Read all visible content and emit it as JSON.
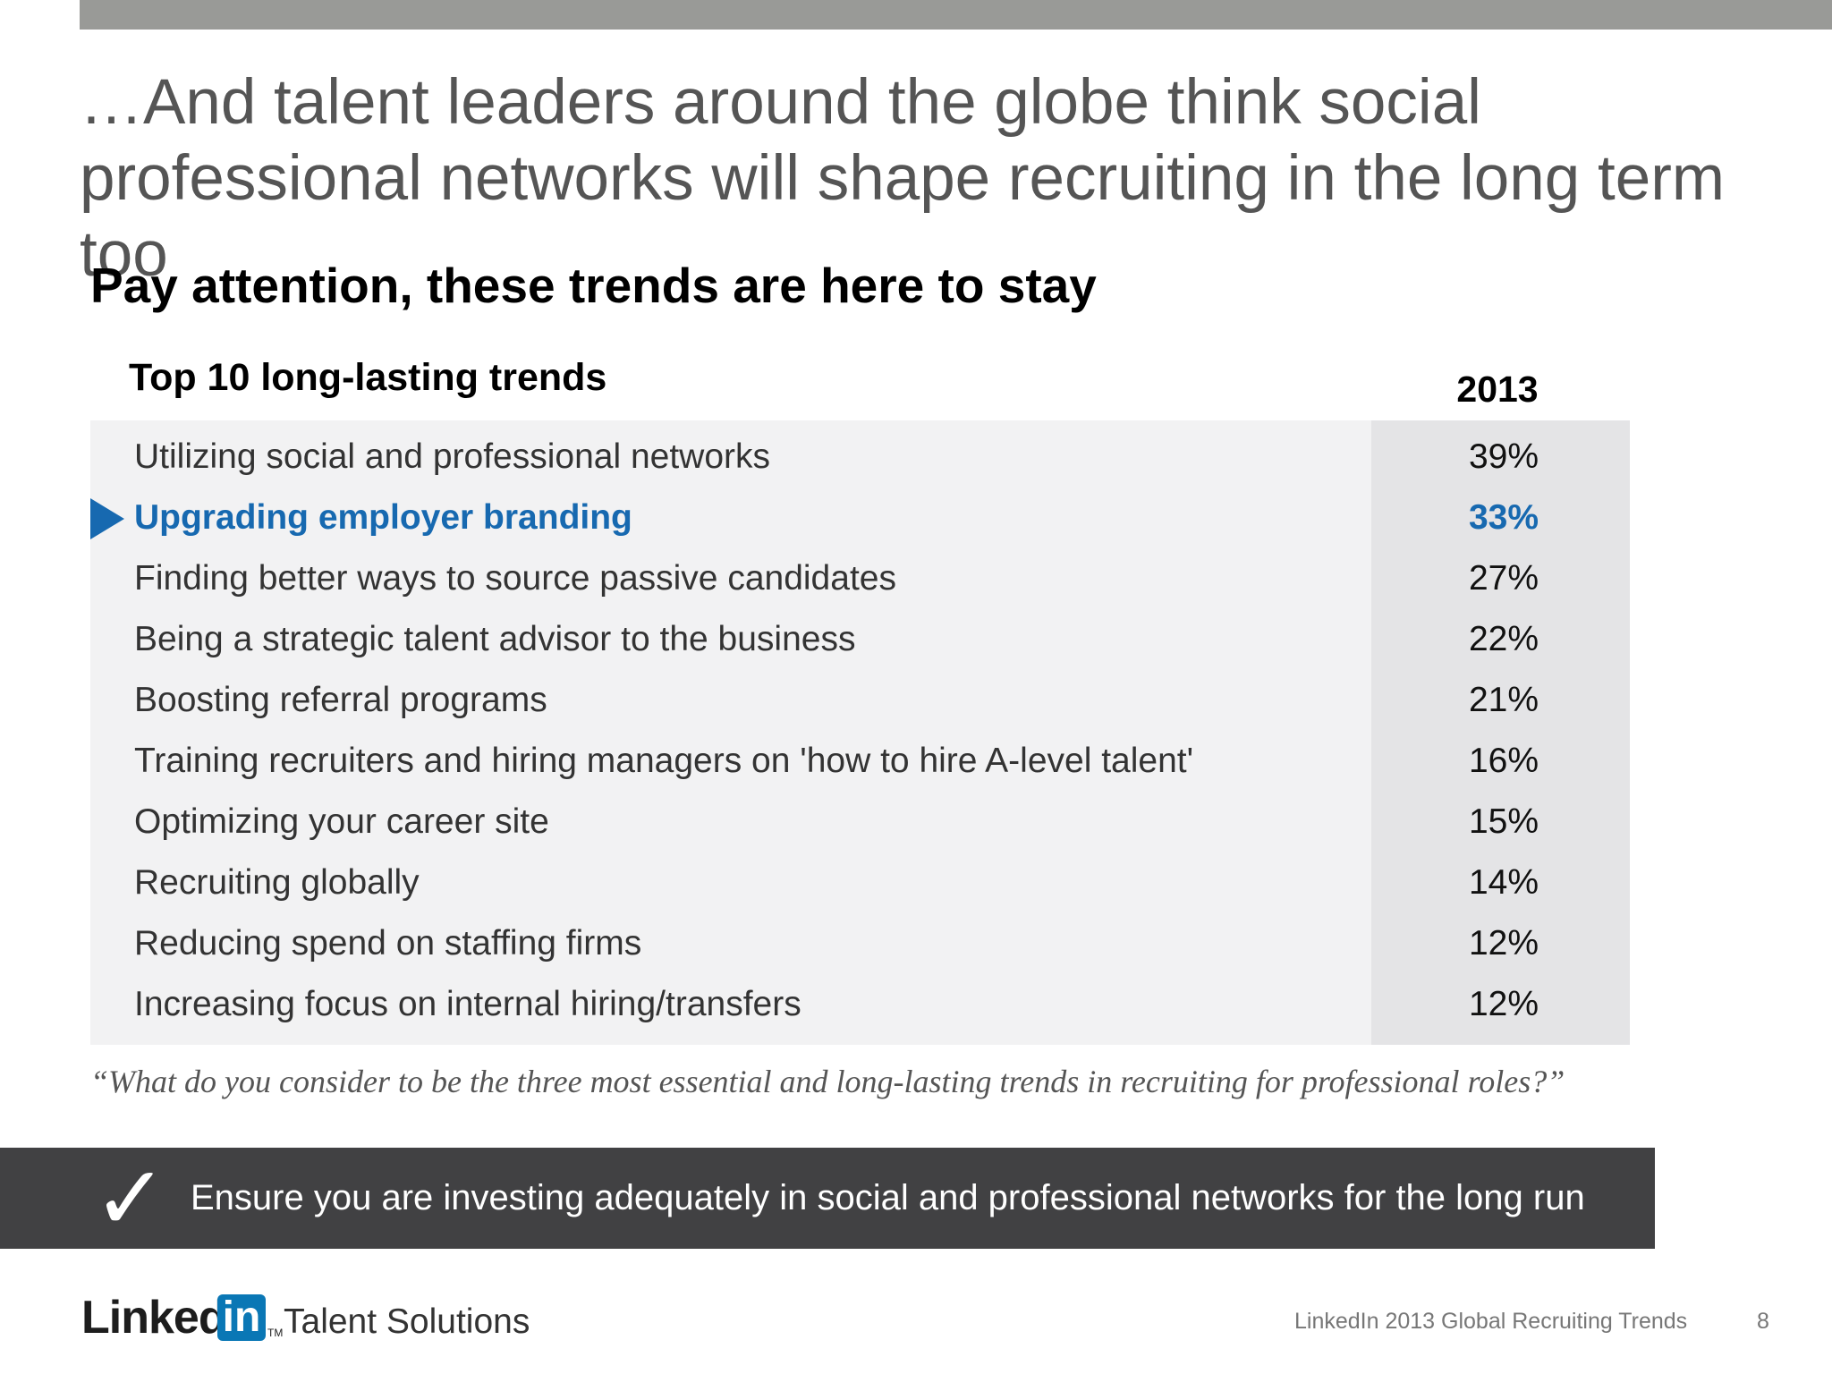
{
  "slide": {
    "title": "…And talent leaders around the globe think social professional networks will shape recruiting in the long term too",
    "subtitle": "Pay attention, these trends are here to stay"
  },
  "table": {
    "heading": "Top 10 long-lasting trends",
    "year": "2013",
    "highlight_color": "#1769b0",
    "rows": [
      {
        "label": "Utilizing social and professional networks",
        "value": "39%"
      },
      {
        "label": "Upgrading employer branding",
        "value": "33%"
      },
      {
        "label": "Finding better ways to source passive candidates",
        "value": "27%"
      },
      {
        "label": "Being a strategic talent advisor to the business",
        "value": "22%"
      },
      {
        "label": "Boosting referral programs",
        "value": "21%"
      },
      {
        "label": "Training recruiters and hiring managers on 'how to hire A-level talent'",
        "value": "16%"
      },
      {
        "label": "Optimizing your career site",
        "value": "15%"
      },
      {
        "label": "Recruiting globally",
        "value": "14%"
      },
      {
        "label": "Reducing spend on staffing firms",
        "value": "12%"
      },
      {
        "label": "Increasing focus on internal hiring/transfers",
        "value": "12%"
      }
    ],
    "highlighted_row": "Upgrading employer branding"
  },
  "question": "“What do you consider to be the three most essential and long-lasting trends in recruiting for professional roles?”",
  "takeaway": {
    "icon": "checkmark-icon",
    "text": "Ensure you are investing adequately in social and professional networks for the long run"
  },
  "footer": {
    "logo_linked": "Linked",
    "logo_in": "in",
    "logo_tm": "TM",
    "logo_subtitle": "Talent Solutions",
    "source": "LinkedIn 2013 Global Recruiting Trends",
    "page_number": "8"
  }
}
